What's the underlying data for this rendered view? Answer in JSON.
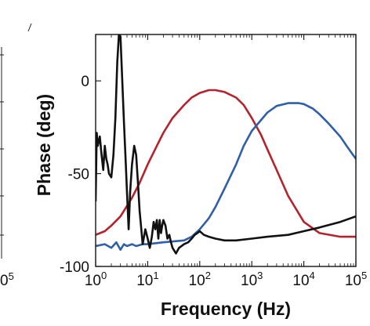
{
  "chart_data": {
    "type": "line",
    "title": "",
    "xlabel": "Frequency (Hz)",
    "ylabel": "Phase (deg)",
    "xscale": "log",
    "xlim": [
      1,
      100000
    ],
    "ylim": [
      -100,
      25
    ],
    "grid": false,
    "legend": "none",
    "x_ticks": [
      {
        "value": 1,
        "mantissa": "10",
        "exp": "0"
      },
      {
        "value": 10,
        "mantissa": "10",
        "exp": "1"
      },
      {
        "value": 100,
        "mantissa": "10",
        "exp": "2"
      },
      {
        "value": 1000,
        "mantissa": "10",
        "exp": "3"
      },
      {
        "value": 10000,
        "mantissa": "10",
        "exp": "4"
      },
      {
        "value": 100000,
        "mantissa": "10",
        "exp": "5"
      }
    ],
    "y_ticks": [
      {
        "value": 0,
        "label": "0"
      },
      {
        "value": -50,
        "label": "-50"
      },
      {
        "value": -100,
        "label": "-100"
      }
    ],
    "left_edge_label": {
      "mantissa": "0",
      "exp": "5"
    },
    "series": [
      {
        "color": "#b5222b",
        "x": [
          1,
          1.5,
          2,
          3,
          5,
          7,
          10,
          15,
          20,
          30,
          50,
          70,
          100,
          150,
          200,
          300,
          500,
          700,
          1000,
          1500,
          2000,
          3000,
          5000,
          10000,
          20000,
          50000,
          100000
        ],
        "y": [
          -83,
          -81,
          -78,
          -73,
          -63,
          -55,
          -45,
          -35,
          -28,
          -20,
          -13,
          -9,
          -6.5,
          -5,
          -5,
          -6,
          -9,
          -13,
          -20,
          -29,
          -37,
          -48,
          -62,
          -76,
          -82,
          -84,
          -84
        ]
      },
      {
        "color": "#2e5fa8",
        "x": [
          1,
          1.5,
          2,
          2.5,
          3,
          3.5,
          4,
          5,
          6,
          8,
          10,
          20,
          50,
          70,
          100,
          150,
          200,
          300,
          500,
          700,
          1000,
          2000,
          3000,
          5000,
          8000,
          10000,
          15000,
          20000,
          30000,
          50000,
          70000,
          100000
        ],
        "y": [
          -89,
          -88,
          -90,
          -87,
          -91,
          -88,
          -89,
          -88,
          -89,
          -88,
          -88,
          -87,
          -86,
          -84,
          -80,
          -74,
          -68,
          -58,
          -45,
          -35,
          -27,
          -17,
          -13.5,
          -12,
          -12,
          -12.5,
          -15,
          -18,
          -23,
          -30,
          -36,
          -42
        ]
      },
      {
        "color": "#111111",
        "x": [
          1,
          1.05,
          1.1,
          1.2,
          1.3,
          1.4,
          1.5,
          1.6,
          1.7,
          1.8,
          2.0,
          2.2,
          2.4,
          2.6,
          2.8,
          3.0,
          3.2,
          3.5,
          3.8,
          4.0,
          4.3,
          4.6,
          5.0,
          5.5,
          6.0,
          6.5,
          7.0,
          8.0,
          9.0,
          10,
          11,
          12,
          13,
          14,
          15,
          16,
          17,
          18,
          19,
          20,
          22,
          24,
          26,
          28,
          30,
          35,
          40,
          50,
          60,
          70,
          80,
          90,
          100,
          120,
          150,
          200,
          300,
          500,
          1000,
          2000,
          5000,
          10000,
          20000,
          50000,
          100000
        ],
        "y": [
          -65,
          -28,
          -35,
          -30,
          -40,
          -48,
          -35,
          -42,
          -45,
          -50,
          -52,
          -40,
          -20,
          10,
          25,
          24,
          5,
          -22,
          -45,
          -60,
          -80,
          -60,
          -45,
          -35,
          -40,
          -55,
          -70,
          -88,
          -80,
          -85,
          -90,
          -84,
          -76,
          -80,
          -75,
          -85,
          -75,
          -82,
          -78,
          -75,
          -78,
          -85,
          -83,
          -87,
          -90,
          -93,
          -90,
          -88,
          -87,
          -85,
          -83,
          -82,
          -81,
          -83,
          -84,
          -85,
          -86,
          -86,
          -85,
          -84,
          -83,
          -81,
          -79,
          -76,
          -73
        ]
      }
    ]
  }
}
